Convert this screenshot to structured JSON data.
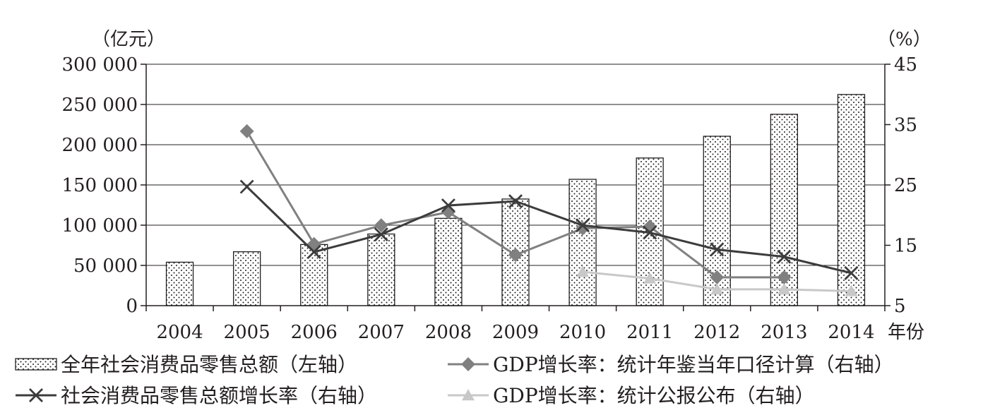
{
  "chart_data": {
    "type": "bar",
    "categories": [
      "2004",
      "2005",
      "2006",
      "2007",
      "2008",
      "2009",
      "2010",
      "2011",
      "2012",
      "2013",
      "2014"
    ],
    "x_unit": "年份",
    "left_axis": {
      "unit": "（亿元）",
      "range": [
        0,
        300000
      ],
      "ticks": [
        "0",
        "50 000",
        "100 000",
        "150 000",
        "200 000",
        "250 000",
        "300 000"
      ],
      "tick_values": [
        0,
        50000,
        100000,
        150000,
        200000,
        250000,
        300000
      ]
    },
    "right_axis": {
      "unit": "（%）",
      "range": [
        5,
        45
      ],
      "ticks": [
        "5",
        "15",
        "25",
        "35",
        "45"
      ],
      "tick_values": [
        5,
        15,
        25,
        35,
        45
      ]
    },
    "grid": true,
    "legend_position": "bottom",
    "series": [
      {
        "name": "全年社会消费品零售总额（左轴）",
        "type": "bar",
        "axis": "left",
        "color": "#e8e8e8",
        "values": [
          54000,
          67000,
          76000,
          89000,
          108500,
          132500,
          157000,
          183500,
          210500,
          237800,
          262400
        ]
      },
      {
        "name": "GDP增长率：统计年鉴当年口径计算（右轴）",
        "type": "line",
        "axis": "right",
        "marker": "diamond",
        "color": "#808080",
        "values": [
          null,
          33.9,
          15.2,
          18.3,
          20.5,
          13.4,
          17.8,
          18.1,
          9.7,
          9.7,
          null
        ]
      },
      {
        "name": "社会消费品零售总额增长率（右轴）",
        "type": "line",
        "axis": "right",
        "marker": "x",
        "color": "#3c3c3c",
        "values": [
          null,
          24.7,
          13.9,
          16.8,
          21.6,
          22.3,
          18.3,
          17.1,
          14.3,
          13.1,
          10.4
        ]
      },
      {
        "name": "GDP增长率：统计公报公布（右轴）",
        "type": "line",
        "axis": "right",
        "marker": "triangle",
        "color": "#c8c8c8",
        "values": [
          null,
          null,
          null,
          null,
          null,
          null,
          10.6,
          9.5,
          7.7,
          7.7,
          7.4
        ]
      }
    ]
  }
}
